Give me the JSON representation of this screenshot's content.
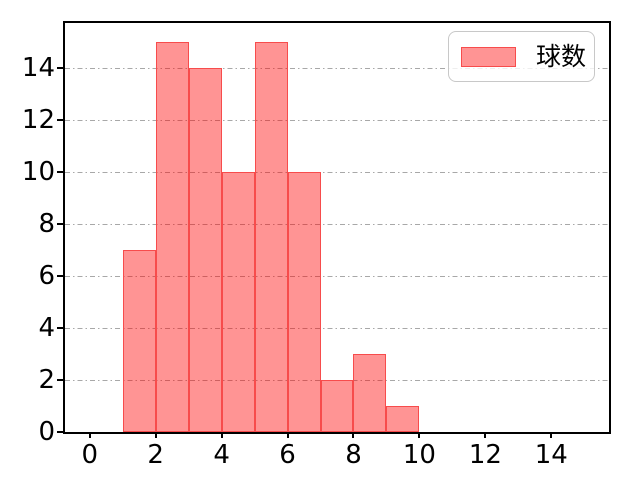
{
  "chart_data": {
    "type": "bar",
    "subtype": "histogram",
    "title": "",
    "xlabel": "",
    "ylabel": "",
    "bin_edges": [
      1,
      2,
      3,
      4,
      5,
      6,
      7,
      8,
      9,
      10
    ],
    "counts": [
      7,
      15,
      14,
      10,
      15,
      10,
      2,
      3,
      1
    ],
    "series": [
      {
        "name": "球数",
        "values": [
          7,
          15,
          14,
          10,
          15,
          10,
          2,
          3,
          1
        ]
      }
    ],
    "xticks": [
      0,
      2,
      4,
      6,
      8,
      10,
      12,
      14
    ],
    "yticks": [
      0,
      2,
      4,
      6,
      8,
      10,
      12,
      14
    ],
    "xlim": [
      -0.75,
      15.75
    ],
    "ylim": [
      0,
      15.75
    ],
    "grid": "horizontal",
    "grid_style": "dash-dot",
    "grid_color": "#a8a8a8",
    "bar_fill_rgba": "rgba(255,0,0,0.42)",
    "bar_fill_hex_on_white": "#ff9494",
    "bar_edge": "#f74c4c",
    "axis_color": "#000000",
    "legend_position": "upper right"
  },
  "legend": {
    "label": "球数"
  }
}
